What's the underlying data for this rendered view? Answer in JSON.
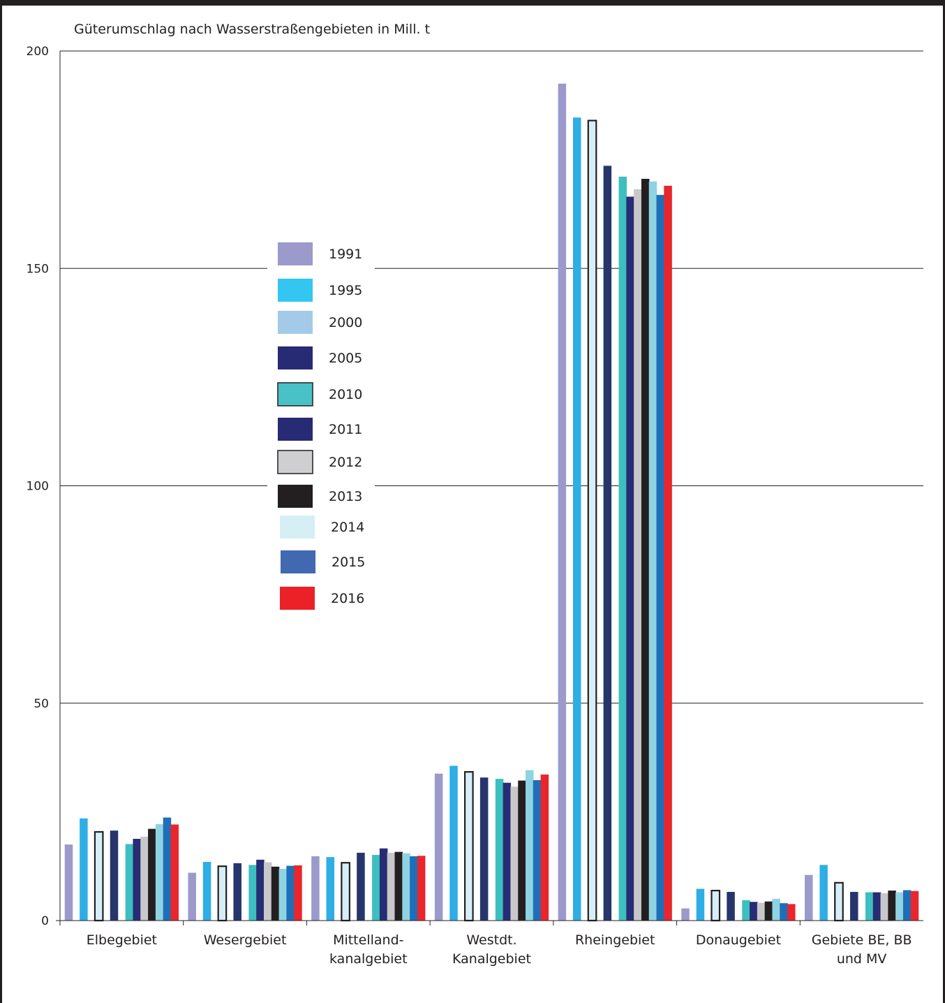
{
  "chart_data": {
    "type": "bar",
    "title": "Güterumschlag nach Wasserstraßengebieten in Mill. t",
    "xlabel": "",
    "ylabel": "",
    "ylim": [
      0,
      200
    ],
    "yticks": [
      "0",
      "50",
      "100",
      "150",
      "200"
    ],
    "grid": true,
    "legend_position": "left-center",
    "categories": [
      [
        "Elbegebiet"
      ],
      [
        "Wesergebiet"
      ],
      [
        "Mittelland-",
        "kanalgebiet"
      ],
      [
        "Westdt.",
        "Kanalgebiet"
      ],
      [
        "Rheingebiet"
      ],
      [
        "Donaugebiet"
      ],
      [
        "Gebiete BE, BB",
        "und MV"
      ]
    ],
    "series": [
      {
        "name": "1991",
        "color": "#9b9acb",
        "outline": false,
        "values": [
          17.5,
          11.0,
          14.8,
          33.8,
          192.5,
          2.8,
          10.5
        ]
      },
      {
        "name": "1995",
        "color": "#2eaee5",
        "outline": false,
        "values": [
          23.5,
          13.5,
          14.6,
          35.6,
          184.7,
          7.3,
          12.8
        ]
      },
      {
        "name": "2000",
        "color": "#d6eef8",
        "outline": true,
        "values": [
          20.4,
          12.5,
          13.3,
          34.2,
          184.0,
          6.9,
          8.7
        ]
      },
      {
        "name": "2005",
        "color": "#26356c",
        "outline": false,
        "values": [
          20.7,
          13.2,
          15.6,
          32.9,
          173.6,
          6.6,
          6.6
        ]
      },
      {
        "name": "2010",
        "color": "#3dbfbf",
        "outline": false,
        "values": [
          17.6,
          12.8,
          15.1,
          32.6,
          171.1,
          4.7,
          6.5
        ]
      },
      {
        "name": "2011",
        "color": "#272c74",
        "outline": false,
        "values": [
          18.8,
          14.0,
          16.6,
          31.7,
          166.5,
          4.3,
          6.5
        ]
      },
      {
        "name": "2012",
        "color": "#c8c8ca",
        "outline": false,
        "values": [
          19.3,
          13.4,
          15.6,
          30.8,
          168.2,
          4.1,
          6.3
        ]
      },
      {
        "name": "2013",
        "color": "#231f20",
        "outline": false,
        "values": [
          21.1,
          12.4,
          15.8,
          32.2,
          170.6,
          4.4,
          6.9
        ]
      },
      {
        "name": "2014",
        "color": "#8fd3e3",
        "outline": false,
        "values": [
          22.2,
          11.9,
          15.5,
          34.6,
          170.0,
          5.0,
          6.5
        ]
      },
      {
        "name": "2015",
        "color": "#1e6fb8",
        "outline": false,
        "values": [
          23.7,
          12.6,
          14.8,
          32.3,
          166.9,
          4.0,
          7.0
        ]
      },
      {
        "name": "2016",
        "color": "#e9262d",
        "outline": false,
        "values": [
          22.1,
          12.7,
          14.9,
          33.6,
          169.0,
          3.8,
          6.8
        ]
      }
    ],
    "legend": [
      {
        "label": "1991",
        "color": "#9b9acb",
        "outline": false
      },
      {
        "label": "1995",
        "color": "#33c6f1",
        "outline": false
      },
      {
        "label": "2000",
        "color": "#a3cae8",
        "outline": false
      },
      {
        "label": "2005",
        "color": "#272b74",
        "outline": false
      },
      {
        "label": "2010",
        "color": "#48c2c6",
        "outline": true
      },
      {
        "label": "2011",
        "color": "#272b74",
        "outline": false
      },
      {
        "label": "2012",
        "color": "#cfcfd1",
        "outline": true
      },
      {
        "label": "2013",
        "color": "#231f20",
        "outline": false
      },
      {
        "label": "2014",
        "color": "#d6eff5",
        "outline": false
      },
      {
        "label": "2015",
        "color": "#4069b1",
        "outline": false
      },
      {
        "label": "2016",
        "color": "#ec2127",
        "outline": false
      }
    ]
  }
}
